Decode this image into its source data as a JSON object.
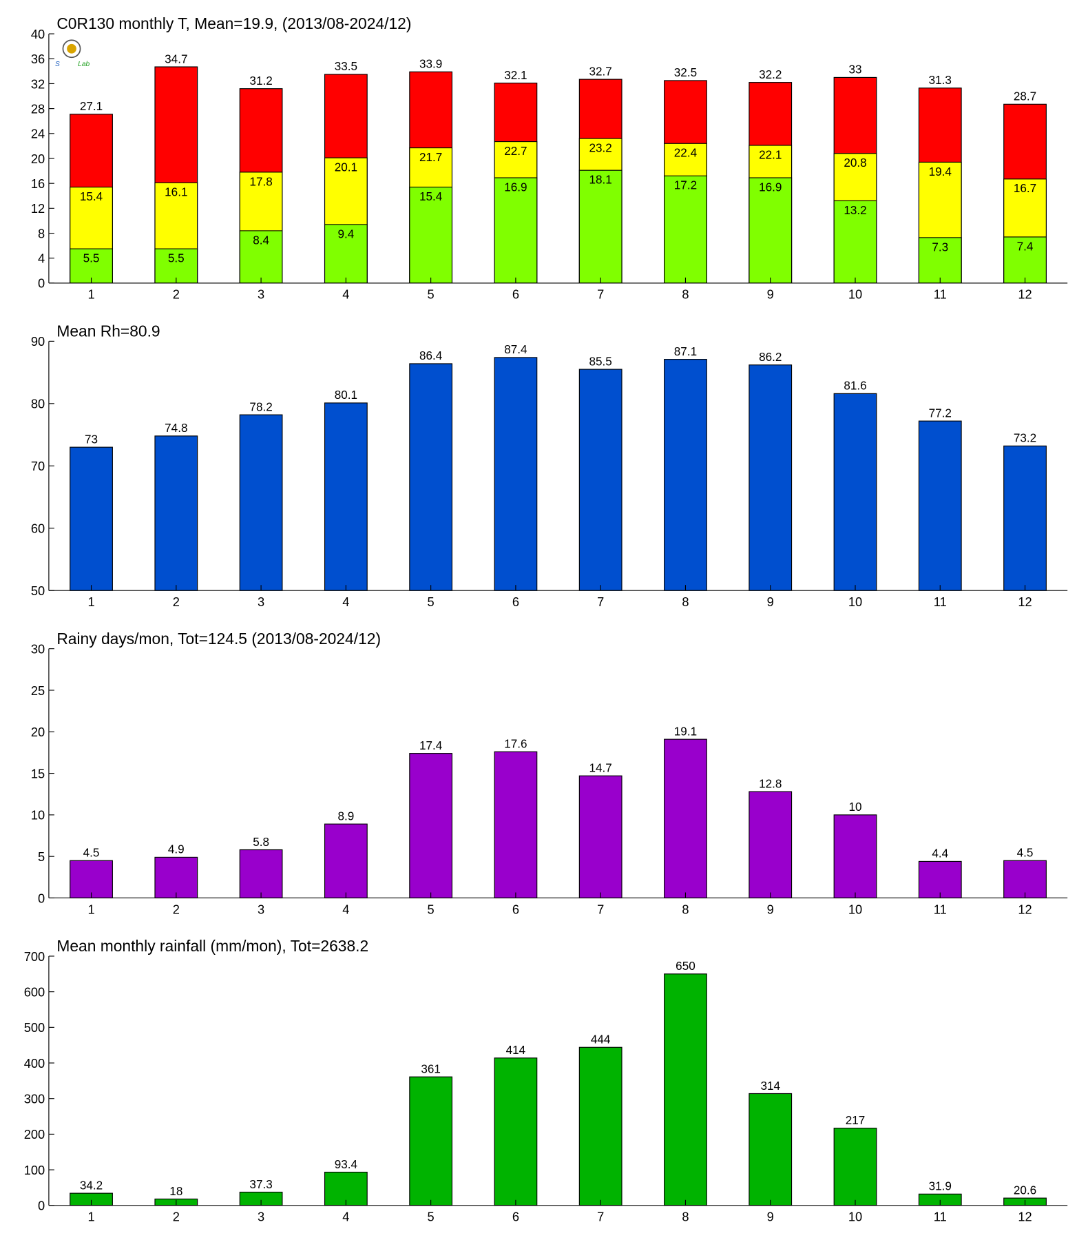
{
  "chart_data": [
    {
      "type": "bar",
      "title": "C0R130 monthly T, Mean=19.9, (2013/08-2024/12)",
      "categories": [
        "1",
        "2",
        "3",
        "4",
        "5",
        "6",
        "7",
        "8",
        "9",
        "10",
        "11",
        "12"
      ],
      "series": [
        {
          "color": "#ff0000",
          "values": [
            27.1,
            34.7,
            31.2,
            33.5,
            33.9,
            32.1,
            32.7,
            32.5,
            32.2,
            33,
            31.3,
            28.7
          ]
        },
        {
          "color": "#ffff00",
          "values": [
            15.4,
            16.1,
            17.8,
            20.1,
            21.7,
            22.7,
            23.2,
            22.4,
            22.1,
            20.8,
            19.4,
            16.7
          ]
        },
        {
          "color": "#80ff00",
          "values": [
            5.5,
            5.5,
            8.4,
            9.4,
            15.4,
            16.9,
            18.1,
            17.2,
            16.9,
            13.2,
            7.3,
            7.4
          ]
        }
      ],
      "ylim": [
        0,
        40
      ],
      "yticks": [
        0,
        4,
        8,
        12,
        16,
        20,
        24,
        28,
        32,
        36,
        40
      ]
    },
    {
      "type": "bar",
      "title": "Mean Rh=80.9",
      "categories": [
        "1",
        "2",
        "3",
        "4",
        "5",
        "6",
        "7",
        "8",
        "9",
        "10",
        "11",
        "12"
      ],
      "series": [
        {
          "color": "#004fcf",
          "values": [
            73,
            74.8,
            78.2,
            80.1,
            86.4,
            87.4,
            85.5,
            87.1,
            86.2,
            81.6,
            77.2,
            73.2
          ]
        }
      ],
      "ylim": [
        50,
        90
      ],
      "yticks": [
        50,
        60,
        70,
        80,
        90
      ]
    },
    {
      "type": "bar",
      "title": "Rainy days/mon, Tot=124.5 (2013/08-2024/12)",
      "categories": [
        "1",
        "2",
        "3",
        "4",
        "5",
        "6",
        "7",
        "8",
        "9",
        "10",
        "11",
        "12"
      ],
      "series": [
        {
          "color": "#9900cc",
          "values": [
            4.5,
            4.9,
            5.8,
            8.9,
            17.4,
            17.6,
            14.7,
            19.1,
            12.8,
            10,
            4.4,
            4.5
          ]
        }
      ],
      "ylim": [
        0,
        30
      ],
      "yticks": [
        0,
        5,
        10,
        15,
        20,
        25,
        30
      ]
    },
    {
      "type": "bar",
      "title": "Mean monthly rainfall (mm/mon), Tot=2638.2",
      "categories": [
        "1",
        "2",
        "3",
        "4",
        "5",
        "6",
        "7",
        "8",
        "9",
        "10",
        "11",
        "12"
      ],
      "series": [
        {
          "color": "#00b300",
          "values": [
            34.2,
            18,
            37.3,
            93.4,
            361,
            414,
            444,
            650,
            314,
            217,
            31.9,
            20.6
          ]
        }
      ],
      "ylim": [
        0,
        700
      ],
      "yticks": [
        0,
        100,
        200,
        300,
        400,
        500,
        600,
        700
      ]
    }
  ]
}
